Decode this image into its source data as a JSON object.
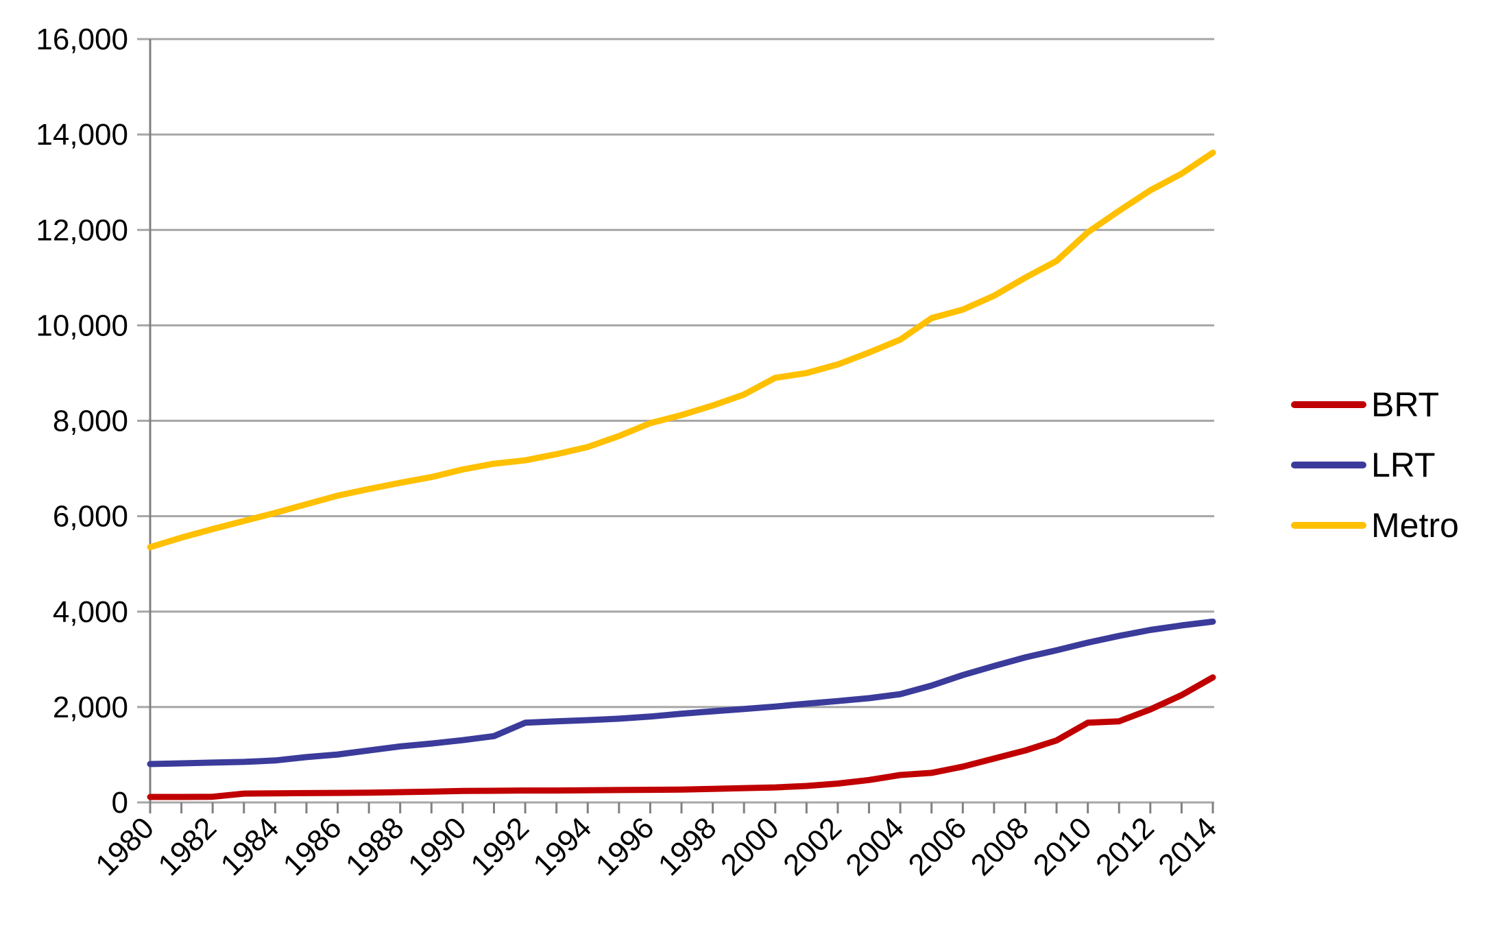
{
  "chart_data": {
    "type": "line",
    "title": "",
    "xlabel": "",
    "ylabel": "",
    "x": [
      1980,
      1981,
      1982,
      1983,
      1984,
      1985,
      1986,
      1987,
      1988,
      1989,
      1990,
      1991,
      1992,
      1993,
      1994,
      1995,
      1996,
      1997,
      1998,
      1999,
      2000,
      2001,
      2002,
      2003,
      2004,
      2005,
      2006,
      2007,
      2008,
      2009,
      2010,
      2011,
      2012,
      2013,
      2014
    ],
    "x_tick_labels": [
      "1980",
      "1982",
      "1984",
      "1986",
      "1988",
      "1990",
      "1992",
      "1994",
      "1996",
      "1998",
      "2000",
      "2002",
      "2004",
      "2006",
      "2008",
      "2010",
      "2012",
      "2014"
    ],
    "x_label_every_years": 2,
    "y_tick_labels": [
      "0",
      "2,000",
      "4,000",
      "6,000",
      "8,000",
      "10,000",
      "12,000",
      "14,000",
      "16,000"
    ],
    "y_tick_values": [
      0,
      2000,
      4000,
      6000,
      8000,
      10000,
      12000,
      14000,
      16000
    ],
    "ylim": [
      0,
      16000
    ],
    "grid": true,
    "legend_position": "right",
    "series": [
      {
        "name": "BRT",
        "color": "#C00000",
        "values": [
          115,
          115,
          120,
          185,
          190,
          195,
          200,
          205,
          215,
          225,
          240,
          245,
          250,
          250,
          255,
          260,
          265,
          270,
          285,
          300,
          315,
          345,
          395,
          470,
          575,
          620,
          750,
          920,
          1090,
          1300,
          1670,
          1700,
          1950,
          2250,
          2620
        ]
      },
      {
        "name": "LRT",
        "color": "#3B3B9B",
        "values": [
          805,
          820,
          835,
          850,
          880,
          950,
          1005,
          1090,
          1175,
          1235,
          1305,
          1390,
          1670,
          1700,
          1725,
          1755,
          1800,
          1860,
          1910,
          1960,
          2010,
          2070,
          2125,
          2185,
          2270,
          2450,
          2670,
          2860,
          3040,
          3190,
          3350,
          3490,
          3615,
          3710,
          3790
        ]
      },
      {
        "name": "Metro",
        "color": "#FFC000",
        "values": [
          5350,
          5550,
          5730,
          5900,
          6070,
          6250,
          6430,
          6570,
          6700,
          6820,
          6980,
          7100,
          7170,
          7300,
          7450,
          7680,
          7950,
          8120,
          8320,
          8550,
          8900,
          9000,
          9180,
          9430,
          9700,
          10150,
          10330,
          10620,
          11000,
          11350,
          11950,
          12400,
          12830,
          13180,
          13620
        ]
      }
    ],
    "style": {
      "grid_color": "#A6A6A6",
      "axis_color": "#808080",
      "text_color": "#000000",
      "line_width": 9
    }
  }
}
